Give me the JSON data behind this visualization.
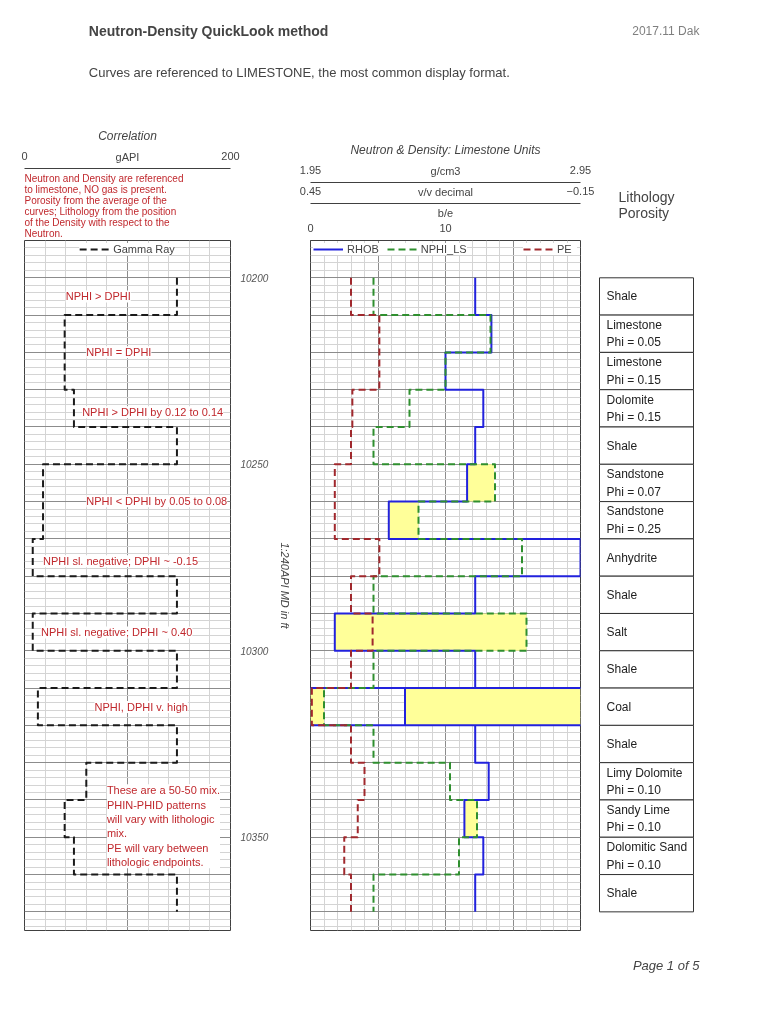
{
  "chart_data": [
    {
      "type": "other",
      "title": "Neutron-Density QuickLook method",
      "subtitle": "Curves are referenced to LIMESTONE, the most common display format.",
      "annotations": [
        "2017.11 Dak",
        "Page 1 of 5"
      ]
    },
    {
      "type": "line",
      "title": "Correlation",
      "xlabel": "gAPI",
      "ylabel": "1:240API MD in ft",
      "xlim": [
        0,
        200
      ],
      "xticks": [
        0,
        {
          "value": 100,
          "label": null
        },
        200
      ],
      "ylim": [
        10375,
        10190
      ],
      "yticks": [
        10200,
        {
          "value": 10210,
          "label": null
        },
        {
          "value": 10220,
          "label": null
        },
        {
          "value": 10230,
          "label": null
        },
        {
          "value": 10240,
          "label": null
        },
        10250,
        {
          "value": 10260,
          "label": null
        },
        {
          "value": 10270,
          "label": null
        },
        {
          "value": 10280,
          "label": null
        },
        {
          "value": 10290,
          "label": null
        },
        10300,
        {
          "value": 10310,
          "label": null
        },
        {
          "value": 10320,
          "label": null
        },
        {
          "value": 10330,
          "label": null
        },
        {
          "value": 10340,
          "label": null
        },
        10350,
        {
          "value": 10360,
          "label": null
        },
        {
          "value": 10370,
          "label": null
        }
      ],
      "grid": true,
      "legend": "top",
      "annotations": [
        "Neutron and Density are referenced to limestone, NO gas is present. Porosity from the average of the curves; Lithology from the position of the Density with respect to the Neutron.",
        "NPHI > DPHI",
        "NPHI = DPHI",
        "NPHI > DPHI by 0.12 to 0.14",
        "NPHI < DPHI by 0.05 to 0.08",
        "NPHI sl. negative; DPHI ~ -0.15",
        "NPHI sl. negative; DPHI ~ 0.40",
        "NPHI, DPHI v. high",
        "These are a 50-50 mix.\nPHIN-PHID patterns\nwill vary with lithologic\nmix.\nPE will vary between\nlithologic endpoints."
      ],
      "series": [
        {
          "name": "Gamma Ray",
          "color": "#1a1a1a",
          "line_style": "dashed",
          "x": [
            148,
            148,
            39,
            39,
            39,
            39,
            48,
            48,
            148,
            148,
            18,
            18,
            18,
            18,
            8,
            8,
            148,
            148,
            8,
            8,
            148,
            148,
            13,
            13,
            148,
            148,
            60,
            60,
            39,
            39,
            48,
            48,
            148,
            148
          ],
          "values": [
            10200,
            10210,
            10210,
            10220,
            10220,
            10230,
            10230,
            10240,
            10240,
            10250,
            10250,
            10260,
            10260,
            10270,
            10270,
            10280,
            10280,
            10290,
            10290,
            10300,
            10300,
            10310,
            10310,
            10320,
            10320,
            10330,
            10330,
            10340,
            10340,
            10350,
            10350,
            10360,
            10360,
            10370
          ]
        }
      ]
    },
    {
      "type": "line",
      "title": "Neutron & Density: Limestone Units",
      "xlabel": "g/cm3",
      "x2label": "v/v decimal",
      "xlim": [
        1.95,
        2.95
      ],
      "xticks": [
        1.95,
        {
          "value": 2.2,
          "label": null
        },
        {
          "value": 2.45,
          "label": null
        },
        {
          "value": 2.7,
          "label": null
        },
        2.95
      ],
      "x2lim": [
        0.45,
        -0.15
      ],
      "x2ticks": [
        0.45,
        {
          "value": -0.15,
          "label": "−0.15"
        }
      ],
      "ylim": [
        10375,
        10190
      ],
      "yticks": [
        10200,
        {
          "value": 10210,
          "label": null
        },
        {
          "value": 10220,
          "label": null
        },
        {
          "value": 10230,
          "label": null
        },
        {
          "value": 10240,
          "label": null
        },
        10250,
        {
          "value": 10260,
          "label": null
        },
        {
          "value": 10270,
          "label": null
        },
        {
          "value": 10280,
          "label": null
        },
        {
          "value": 10290,
          "label": null
        },
        10300,
        {
          "value": 10310,
          "label": null
        },
        {
          "value": 10320,
          "label": null
        },
        {
          "value": 10330,
          "label": null
        },
        {
          "value": 10340,
          "label": null
        },
        10350,
        {
          "value": 10360,
          "label": null
        },
        {
          "value": 10370,
          "label": null
        }
      ],
      "tick_labels": "x",
      "grid": true,
      "legend": "top left",
      "series": [
        {
          "type": "area",
          "color": "#ffff99",
          "x": [
            2.53,
            2.63,
            2.63,
            2.53,
            null,
            2.24,
            2.35,
            2.35,
            2.24,
            null,
            2.04,
            2.75,
            2.75,
            2.04,
            null,
            1.95,
            2.0,
            2.0,
            1.95,
            null,
            2.3,
            2.95,
            2.95,
            2.3,
            null,
            2.52,
            2.57,
            2.57,
            2.52
          ],
          "values": [
            10250,
            10250,
            10260,
            10260,
            null,
            10260,
            10260,
            10270,
            10270,
            null,
            10290,
            10290,
            10300,
            10300,
            null,
            10310,
            10310,
            10320,
            10320,
            null,
            10310,
            10310,
            10320,
            10320,
            null,
            10340,
            10340,
            10350,
            10350
          ]
        },
        {
          "name": "RHOB",
          "color": "#2222dd",
          "line_style": "solid",
          "x": [
            2.56,
            2.56,
            2.62,
            2.62,
            2.45,
            2.45,
            2.59,
            2.59,
            2.56,
            2.56,
            2.53,
            2.53,
            2.24,
            2.24,
            2.95,
            2.95,
            2.56,
            2.56,
            2.04,
            2.04,
            2.56,
            2.56,
            1.95,
            2.95,
            2.3,
            2.3,
            2.95,
            1.95,
            2.56,
            2.56,
            2.61,
            2.61,
            2.52,
            2.52,
            2.59,
            2.59,
            2.56,
            2.56
          ],
          "values": [
            10200,
            10210,
            10210,
            10220,
            10220,
            10230,
            10230,
            10240,
            10240,
            10250,
            10250,
            10260,
            10260,
            10270,
            10270,
            10280,
            10280,
            10290,
            10290,
            10300,
            10300,
            10310,
            10310,
            10310,
            10310,
            10320,
            10320,
            10320,
            10320,
            10330,
            10330,
            10340,
            10340,
            10350,
            10350,
            10360,
            10360,
            10370
          ]
        },
        {
          "name": "NPHI_LS",
          "color": "#2f8f2f",
          "line_style": "dashed",
          "axis": "x2",
          "x": [
            0.31,
            0.31,
            0.05,
            0.05,
            0.15,
            0.15,
            0.23,
            0.23,
            0.31,
            0.31,
            0.04,
            0.04,
            0.21,
            0.21,
            -0.02,
            -0.02,
            0.31,
            0.31,
            -0.03,
            -0.03,
            0.31,
            0.31,
            0.42,
            0.42,
            0.31,
            0.31,
            0.14,
            0.14,
            0.08,
            0.08,
            0.12,
            0.12,
            0.31,
            0.31
          ],
          "values": [
            10200,
            10210,
            10210,
            10220,
            10220,
            10230,
            10230,
            10240,
            10240,
            10250,
            10250,
            10260,
            10260,
            10270,
            10270,
            10280,
            10280,
            10290,
            10290,
            10300,
            10300,
            10310,
            10310,
            10320,
            10320,
            10330,
            10330,
            10340,
            10340,
            10350,
            10350,
            10360,
            10360,
            10370
          ]
        }
      ]
    },
    {
      "type": "line",
      "xlabel": "b/e",
      "xlim": [
        0,
        20
      ],
      "xticks": [
        0,
        10
      ],
      "ylim": [
        10375,
        10190
      ],
      "tick_labels": "x",
      "legend": "top right",
      "series": [
        {
          "name": "PE",
          "color": "#a0282d",
          "line_style": "dashed",
          "x": [
            3.0,
            3.0,
            5.1,
            5.1,
            5.1,
            5.1,
            3.1,
            3.1,
            3.0,
            3.0,
            1.8,
            1.8,
            1.8,
            1.8,
            5.1,
            5.1,
            3.0,
            3.0,
            4.6,
            4.6,
            3.0,
            3.0,
            0.1,
            0.1,
            3.0,
            3.0,
            4.0,
            4.0,
            3.5,
            3.5,
            2.5,
            2.5,
            3.0,
            3.0
          ],
          "values": [
            10200,
            10210,
            10210,
            10220,
            10220,
            10230,
            10230,
            10240,
            10240,
            10250,
            10250,
            10260,
            10260,
            10270,
            10270,
            10280,
            10280,
            10290,
            10290,
            10300,
            10300,
            10310,
            10310,
            10320,
            10320,
            10330,
            10330,
            10340,
            10340,
            10350,
            10350,
            10360,
            10360,
            10370
          ]
        }
      ]
    },
    {
      "type": "other",
      "title": "Lithology Porosity",
      "annotations": [
        "Shale",
        "Limestone\nPhi = 0.05",
        "Limestone\nPhi = 0.15",
        "Dolomite\nPhi = 0.15",
        "Shale",
        "Sandstone\nPhi = 0.07",
        "Sandstone\nPhi = 0.25",
        "Anhydrite",
        "Shale",
        "Salt",
        "Shale",
        "Coal",
        "Shale",
        "Limy Dolomite\nPhi = 0.10",
        "Sandy Lime\nPhi = 0.10",
        "Dolomitic Sand\nPhi = 0.10",
        "Shale"
      ]
    }
  ]
}
